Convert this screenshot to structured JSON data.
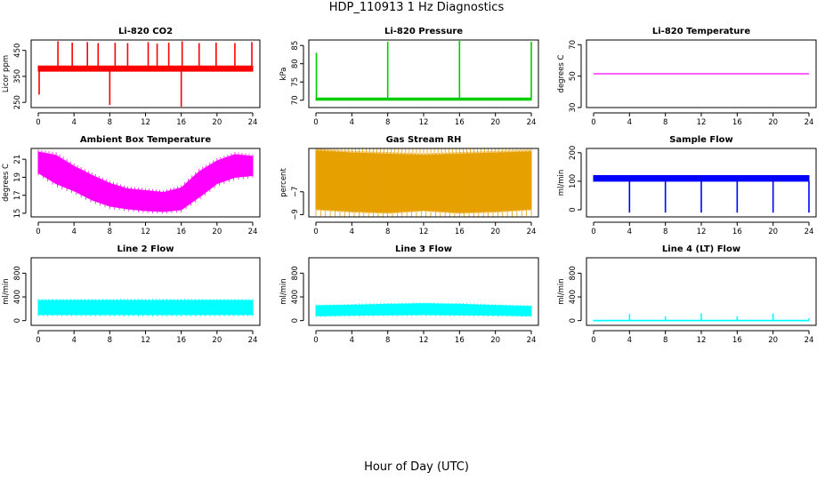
{
  "figure": {
    "title": "HDP_110913  1 Hz Diagnostics",
    "xlabel": "Hour of Day (UTC)"
  },
  "chart_data": [
    {
      "id": "co2",
      "type": "line",
      "title": "Li-820 CO2",
      "ylabel": "Licor ppm",
      "color": "#ff0000",
      "xlim": [
        0,
        24
      ],
      "ylim": [
        230,
        490
      ],
      "xticks": [
        0,
        4,
        8,
        12,
        16,
        20,
        24
      ],
      "yticks": [
        250,
        350,
        450
      ],
      "band": [
        {
          "x": 0,
          "lo": 370,
          "hi": 390
        },
        {
          "x": 24,
          "lo": 370,
          "hi": 390
        }
      ],
      "spikes": [
        {
          "x": 0.1,
          "y": 280
        },
        {
          "x": 2.2,
          "y": 485
        },
        {
          "x": 3.8,
          "y": 480
        },
        {
          "x": 5.5,
          "y": 482
        },
        {
          "x": 6.7,
          "y": 478
        },
        {
          "x": 8.0,
          "y": 240
        },
        {
          "x": 8.6,
          "y": 480
        },
        {
          "x": 10.0,
          "y": 478
        },
        {
          "x": 12.3,
          "y": 482
        },
        {
          "x": 13.3,
          "y": 476
        },
        {
          "x": 14.6,
          "y": 480
        },
        {
          "x": 16.0,
          "y": 230
        },
        {
          "x": 16.1,
          "y": 485
        },
        {
          "x": 18.0,
          "y": 478
        },
        {
          "x": 19.9,
          "y": 480
        },
        {
          "x": 22.0,
          "y": 478
        },
        {
          "x": 23.9,
          "y": 482
        }
      ]
    },
    {
      "id": "pressure",
      "type": "line",
      "title": "Li-820 Pressure",
      "ylabel": "kPa",
      "color": "#00cc00",
      "xlim": [
        0,
        24
      ],
      "ylim": [
        68,
        86.5
      ],
      "xticks": [
        0,
        4,
        8,
        12,
        16,
        20,
        24
      ],
      "yticks": [
        70,
        75,
        80,
        85
      ],
      "band": [
        {
          "x": 0,
          "lo": 70,
          "hi": 70.6
        },
        {
          "x": 24,
          "lo": 70,
          "hi": 70.6
        }
      ],
      "spikes": [
        {
          "x": 0.05,
          "y": 83
        },
        {
          "x": 8.0,
          "y": 86
        },
        {
          "x": 16.0,
          "y": 86.5
        },
        {
          "x": 24.0,
          "y": 86
        }
      ]
    },
    {
      "id": "temp",
      "type": "line",
      "title": "Li-820 Temperature",
      "ylabel": "degrees C",
      "color": "#ff00ff",
      "xlim": [
        0,
        24
      ],
      "ylim": [
        30,
        73
      ],
      "xticks": [
        0,
        4,
        8,
        12,
        16,
        20,
        24
      ],
      "yticks": [
        30,
        50,
        70
      ],
      "band": [
        {
          "x": 0,
          "lo": 51.5,
          "hi": 51.5
        },
        {
          "x": 24,
          "lo": 51.5,
          "hi": 51.5
        }
      ],
      "spikes": []
    },
    {
      "id": "ambient",
      "type": "area",
      "title": "Ambient Box Temperature",
      "ylabel": "degrees C",
      "color": "#ff00ff",
      "xlim": [
        0,
        24
      ],
      "ylim": [
        14.6,
        22.2
      ],
      "xticks": [
        0,
        4,
        8,
        12,
        16,
        20,
        24
      ],
      "yticks": [
        15,
        17,
        19,
        21
      ],
      "band": [
        {
          "x": 0,
          "lo": 19.5,
          "hi": 21.8
        },
        {
          "x": 2,
          "lo": 18.3,
          "hi": 21.4
        },
        {
          "x": 4,
          "lo": 17.5,
          "hi": 20.2
        },
        {
          "x": 6,
          "lo": 16.5,
          "hi": 19.2
        },
        {
          "x": 8,
          "lo": 15.8,
          "hi": 18.3
        },
        {
          "x": 10,
          "lo": 15.5,
          "hi": 17.7
        },
        {
          "x": 12,
          "lo": 15.3,
          "hi": 17.5
        },
        {
          "x": 14,
          "lo": 15.2,
          "hi": 17.3
        },
        {
          "x": 16,
          "lo": 15.4,
          "hi": 17.8
        },
        {
          "x": 18,
          "lo": 16.8,
          "hi": 19.6
        },
        {
          "x": 20,
          "lo": 18.3,
          "hi": 20.8
        },
        {
          "x": 22,
          "lo": 19.0,
          "hi": 21.5
        },
        {
          "x": 24,
          "lo": 19.2,
          "hi": 21.3
        }
      ],
      "spikes": []
    },
    {
      "id": "rh",
      "type": "area",
      "title": "Gas Stream RH",
      "ylabel": "percent",
      "color": "#e6a000",
      "xlim": [
        0,
        24
      ],
      "ylim": [
        -9.2,
        -3.2
      ],
      "xticks": [
        0,
        4,
        8,
        12,
        16,
        20,
        24
      ],
      "yticks": [
        -9,
        -7
      ],
      "band": [
        {
          "x": 0,
          "lo": -8.5,
          "hi": -3.4
        },
        {
          "x": 4,
          "lo": -8.7,
          "hi": -3.6
        },
        {
          "x": 8,
          "lo": -8.8,
          "hi": -3.7
        },
        {
          "x": 12,
          "lo": -8.6,
          "hi": -3.8
        },
        {
          "x": 16,
          "lo": -8.8,
          "hi": -3.7
        },
        {
          "x": 20,
          "lo": -8.7,
          "hi": -3.6
        },
        {
          "x": 24,
          "lo": -8.5,
          "hi": -3.5
        }
      ],
      "spikes": []
    },
    {
      "id": "sample",
      "type": "line",
      "title": "Sample Flow",
      "ylabel": "ml/min",
      "color": "#0000ff",
      "xlim": [
        0,
        24
      ],
      "ylim": [
        -25,
        215
      ],
      "xticks": [
        0,
        4,
        8,
        12,
        16,
        20,
        24
      ],
      "yticks": [
        0,
        100,
        200
      ],
      "band": [
        {
          "x": 0,
          "lo": 100,
          "hi": 120
        },
        {
          "x": 24,
          "lo": 100,
          "hi": 120
        }
      ],
      "spikes": [
        {
          "x": 4.0,
          "y": -10
        },
        {
          "x": 8.0,
          "y": -10
        },
        {
          "x": 12.0,
          "y": -10
        },
        {
          "x": 16.0,
          "y": -10
        },
        {
          "x": 20.0,
          "y": -10
        },
        {
          "x": 24.0,
          "y": -10
        }
      ]
    },
    {
      "id": "line2",
      "type": "area",
      "title": "Line 2 Flow",
      "ylabel": "ml/min",
      "color": "#00ffff",
      "xlim": [
        0,
        24
      ],
      "ylim": [
        -80,
        1060
      ],
      "xticks": [
        0,
        4,
        8,
        12,
        16,
        20,
        24
      ],
      "yticks": [
        0,
        400,
        800
      ],
      "band": [
        {
          "x": 0,
          "lo": 100,
          "hi": 340
        },
        {
          "x": 24,
          "lo": 100,
          "hi": 340
        }
      ],
      "spikes": []
    },
    {
      "id": "line3",
      "type": "area",
      "title": "Line 3 Flow",
      "ylabel": "ml/min",
      "color": "#00ffff",
      "xlim": [
        0,
        24
      ],
      "ylim": [
        -80,
        1060
      ],
      "xticks": [
        0,
        4,
        8,
        12,
        16,
        20,
        24
      ],
      "yticks": [
        0,
        400,
        800
      ],
      "band": [
        {
          "x": 0,
          "lo": 80,
          "hi": 250
        },
        {
          "x": 4,
          "lo": 90,
          "hi": 260
        },
        {
          "x": 8,
          "lo": 95,
          "hi": 275
        },
        {
          "x": 12,
          "lo": 100,
          "hi": 285
        },
        {
          "x": 16,
          "lo": 95,
          "hi": 275
        },
        {
          "x": 20,
          "lo": 90,
          "hi": 255
        },
        {
          "x": 24,
          "lo": 80,
          "hi": 240
        }
      ],
      "spikes": []
    },
    {
      "id": "line4",
      "type": "line",
      "title": "Line 4 (LT) Flow",
      "ylabel": "ml/min",
      "color": "#00ffff",
      "xlim": [
        0,
        24
      ],
      "ylim": [
        -80,
        1060
      ],
      "xticks": [
        0,
        4,
        8,
        12,
        16,
        20,
        24
      ],
      "yticks": [
        0,
        400,
        800
      ],
      "band": [
        {
          "x": 0,
          "lo": -5,
          "hi": 5
        },
        {
          "x": 24,
          "lo": -5,
          "hi": 5
        }
      ],
      "spikes": [
        {
          "x": 4.0,
          "y": 110
        },
        {
          "x": 8.0,
          "y": 70
        },
        {
          "x": 12.0,
          "y": 120
        },
        {
          "x": 16.0,
          "y": 70
        },
        {
          "x": 20.0,
          "y": 120
        },
        {
          "x": 24.0,
          "y": 40
        }
      ]
    }
  ]
}
